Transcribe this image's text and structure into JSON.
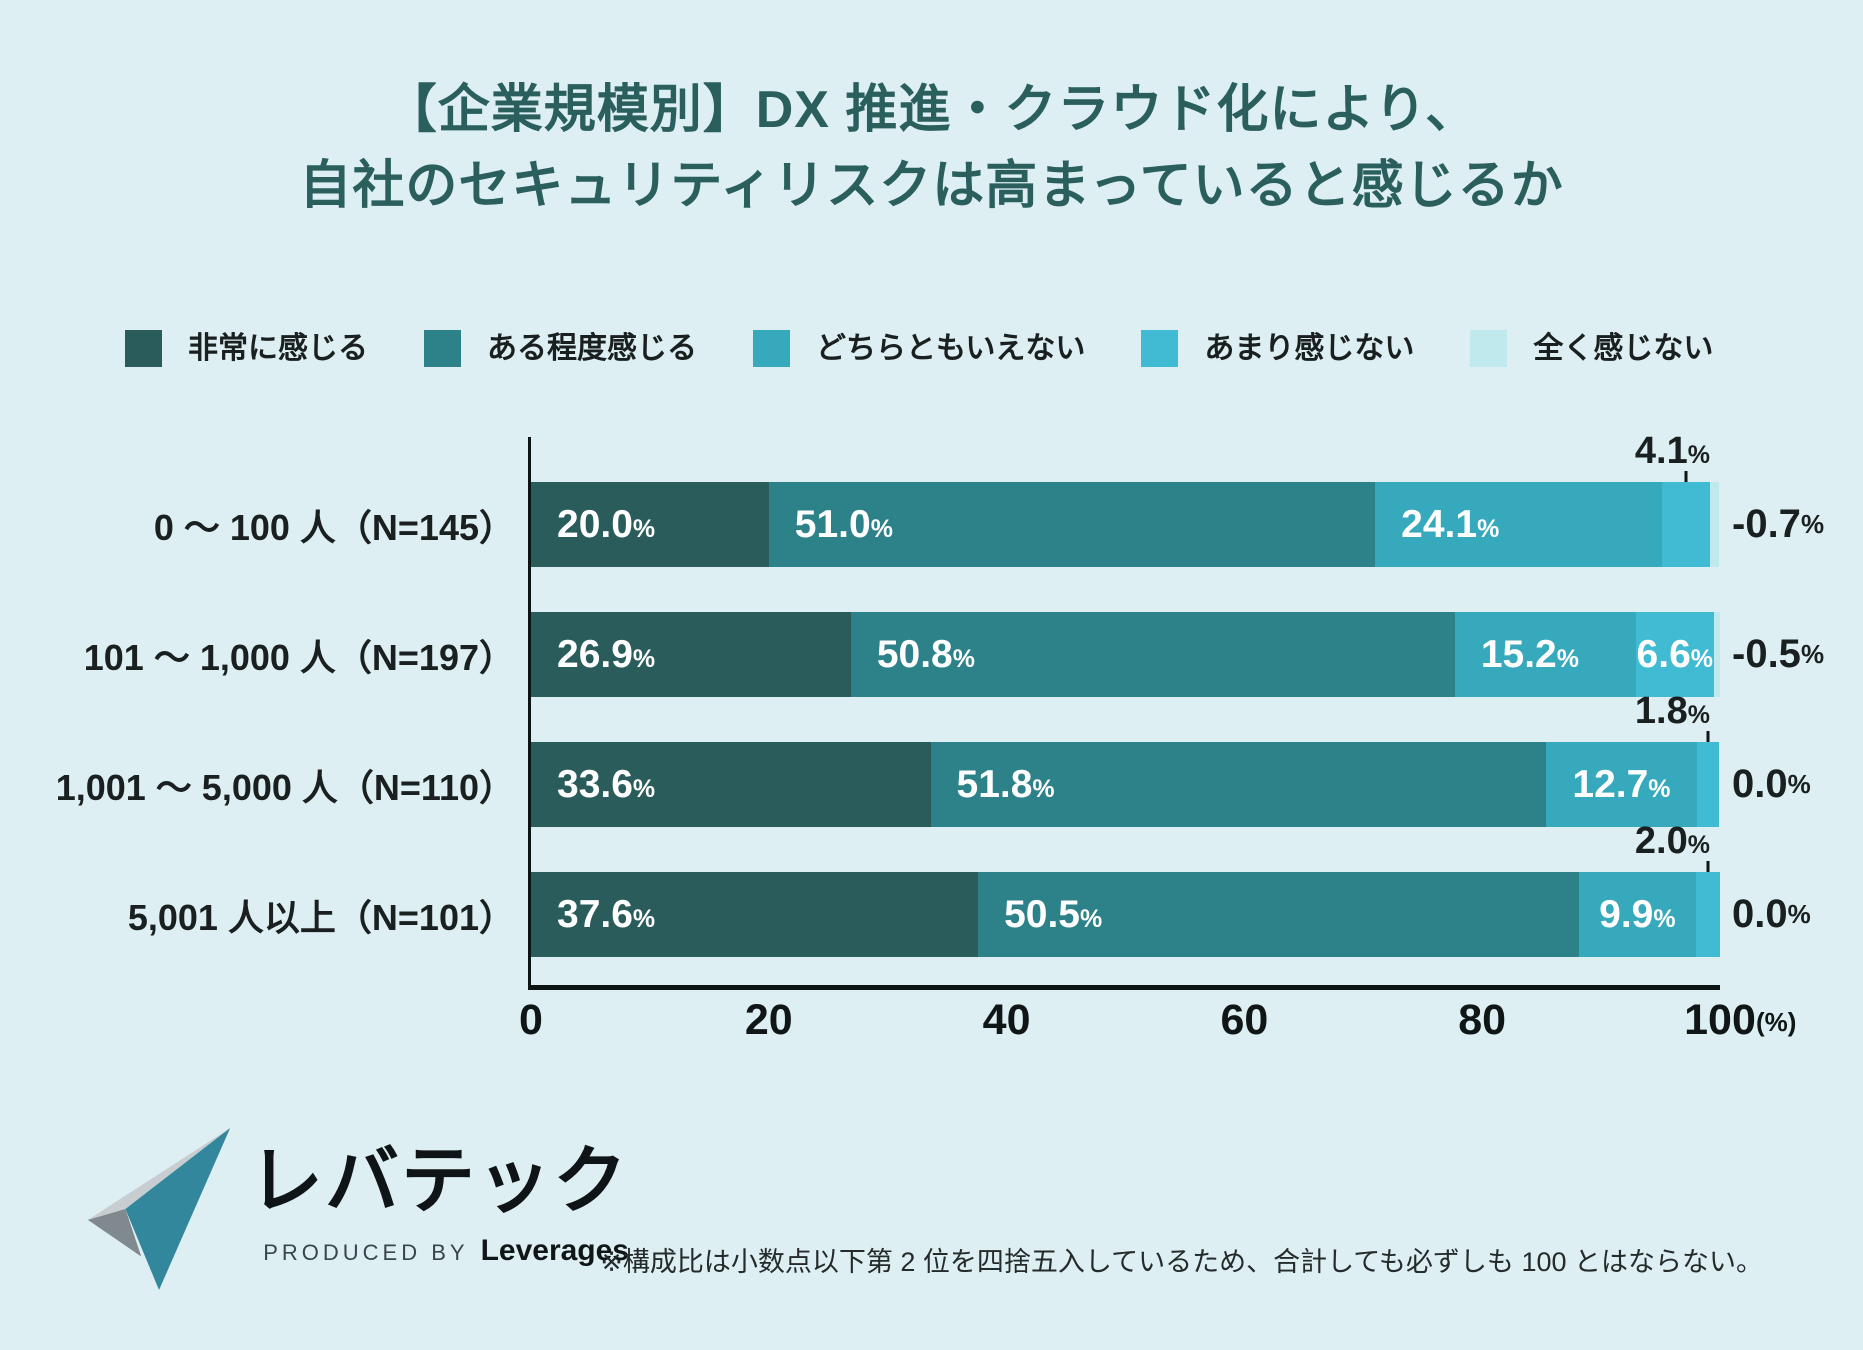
{
  "title": {
    "line1": "【企業規模別】DX 推進・クラウド化により、",
    "line2": "自社のセキュリティリスクは高まっていると感じるか"
  },
  "legend": [
    {
      "label": "非常に感じる",
      "color": "#295c5b"
    },
    {
      "label": "ある程度感じる",
      "color": "#2d8189"
    },
    {
      "label": "どちらともいえない",
      "color": "#37a9bc"
    },
    {
      "label": "あまり感じない",
      "color": "#41bbd3"
    },
    {
      "label": "全く感じない",
      "color": "#bfe9ed"
    }
  ],
  "chart_data": {
    "type": "bar",
    "stacked": true,
    "orientation": "horizontal",
    "unit": "%",
    "series": [
      "非常に感じる",
      "ある程度感じる",
      "どちらともいえない",
      "あまり感じない",
      "全く感じない"
    ],
    "categories": [
      "0 ～ 100 人（N=145）",
      "101 ～ 1,000 人（N=197）",
      "1,001 ～ 5,000 人（N=110）",
      "5,001 人以上（N=101）"
    ],
    "rows": [
      {
        "category": "0 ～ 100 人（N=145）",
        "values": [
          20.0,
          51.0,
          24.1,
          4.1,
          0.7
        ],
        "labels": [
          "20.0",
          "51.0",
          "24.1",
          "4.1",
          "-0.7"
        ],
        "placement": [
          "in",
          "in",
          "in",
          "above",
          "right"
        ]
      },
      {
        "category": "101 ～ 1,000 人（N=197）",
        "values": [
          26.9,
          50.8,
          15.2,
          6.6,
          0.5
        ],
        "labels": [
          "26.9",
          "50.8",
          "15.2",
          "6.6",
          "-0.5"
        ],
        "placement": [
          "in",
          "in",
          "in",
          "in",
          "right"
        ]
      },
      {
        "category": "1,001 ～ 5,000 人（N=110）",
        "values": [
          33.6,
          51.8,
          12.7,
          1.8,
          0.0
        ],
        "labels": [
          "33.6",
          "51.8",
          "12.7",
          "1.8",
          "0.0"
        ],
        "placement": [
          "in",
          "in",
          "in",
          "above",
          "right"
        ]
      },
      {
        "category": "5,001 人以上（N=101）",
        "values": [
          37.6,
          50.5,
          9.9,
          2.0,
          0.0
        ],
        "labels": [
          "37.6",
          "50.5",
          "9.9",
          "2.0",
          "0.0"
        ],
        "placement": [
          "in",
          "in",
          "in",
          "above",
          "right"
        ]
      }
    ],
    "x_axis": {
      "min": 0,
      "max": 100,
      "ticks": [
        "0",
        "20",
        "40",
        "60",
        "80",
        "100"
      ],
      "unit_label": "(%)"
    },
    "legend_position": "top",
    "grid": false
  },
  "footer": {
    "logo_text": "レバテック",
    "produced_by": "PRODUCED BY",
    "company": "Leverages",
    "note": "※構成比は小数点以下第 2 位を四捨五入しているため、合計しても必ずしも 100 とはならない。"
  },
  "colors": {
    "background": "#ddeff3",
    "title": "#2a5f5e",
    "axis": "#0d1414",
    "text": "#1a1f1f",
    "bar_value_text": "#ffffff",
    "logo_teal": "#33879c",
    "logo_gray_light": "#c7cdd0",
    "logo_gray_dark": "#80898e"
  }
}
